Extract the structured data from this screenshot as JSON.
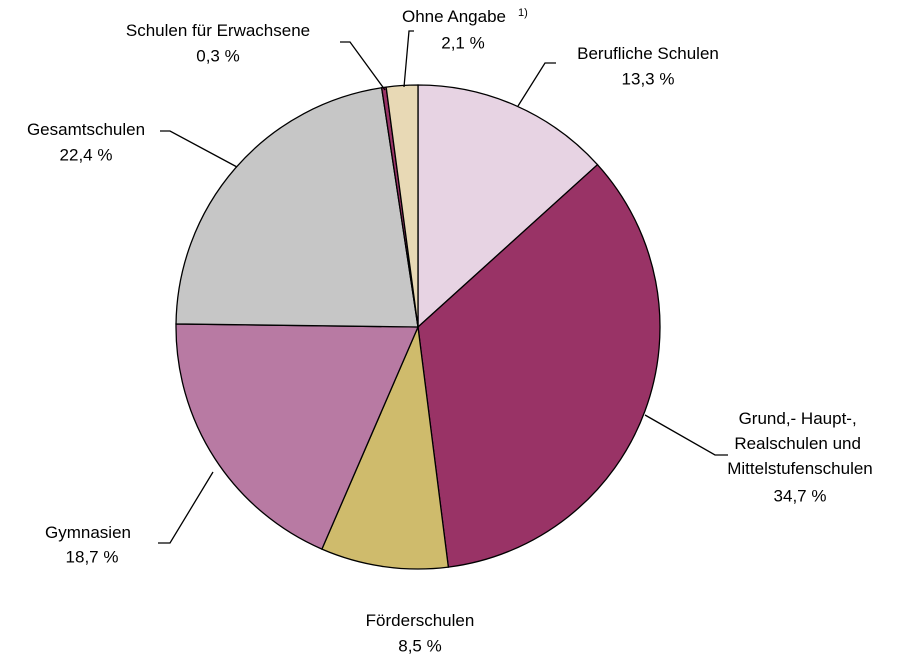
{
  "chart_data": {
    "type": "pie",
    "categories": [
      "Berufliche Schulen",
      "Grund,- Haupt-,\nRealschulen und\nMittelstufenschulen",
      "Förderschulen",
      "Gymnasien",
      "Gesamtschulen",
      "Schulen für Erwachsene",
      "Ohne Angabe"
    ],
    "category_superscripts": [
      null,
      null,
      null,
      null,
      null,
      null,
      "1)"
    ],
    "values": [
      13.3,
      34.7,
      8.5,
      18.7,
      22.4,
      0.3,
      2.1
    ],
    "value_labels": [
      "13,3 %",
      "34,7 %",
      "8,5 %",
      "18,7 %",
      "22,4 %",
      "0,3 %",
      "2,1 %"
    ],
    "colors": [
      "#e7d3e3",
      "#993366",
      "#cfbb6c",
      "#b87aa3",
      "#c6c6c6",
      "#993366",
      "#e8d9b5"
    ]
  }
}
